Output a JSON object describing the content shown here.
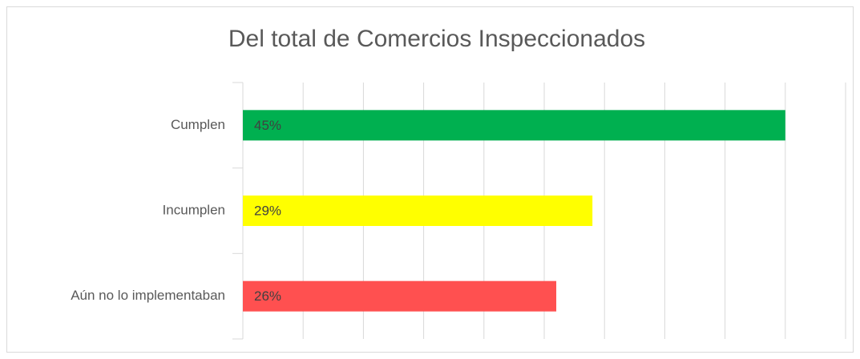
{
  "chart_data": {
    "type": "bar",
    "orientation": "horizontal",
    "title": "Del total de Comercios Inspeccionados",
    "categories": [
      "Cumplen",
      "Incumplen",
      "Aún no lo implementaban"
    ],
    "values": [
      45,
      29,
      26
    ],
    "value_labels": [
      "45%",
      "29%",
      "26%"
    ],
    "colors": [
      "#00b050",
      "#ffff00",
      "#ff5050"
    ],
    "xlim": [
      0,
      50
    ],
    "xticks": [
      0,
      5,
      10,
      15,
      20,
      25,
      30,
      35,
      40,
      45,
      50
    ],
    "grid": true
  }
}
